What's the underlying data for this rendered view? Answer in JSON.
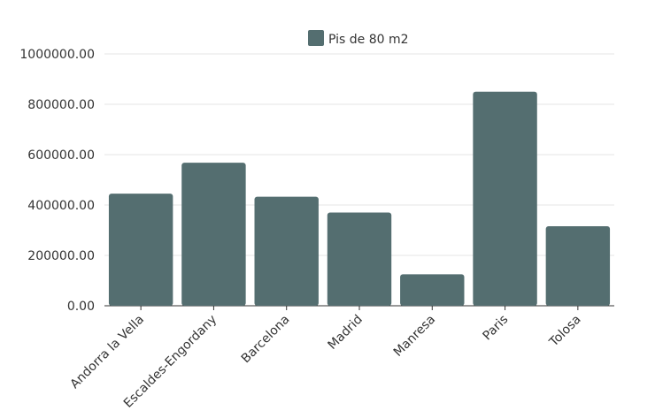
{
  "chart_data": {
    "type": "bar",
    "categories": [
      "Andorra la Vella",
      "Escaldes-Engordany",
      "Barcelona",
      "Madrid",
      "Manresa",
      "Paris",
      "Tolosa"
    ],
    "series": [
      {
        "name": "Pis de 80 m2",
        "values": [
          445000,
          568000,
          433000,
          370000,
          125000,
          850000,
          316000
        ],
        "color": "#546e70"
      }
    ],
    "yticks": [
      "0.00",
      "200000.00",
      "400000.00",
      "600000.00",
      "800000.00",
      "1000000.00"
    ],
    "ylim": [
      0,
      1000000
    ],
    "grid": true,
    "legend_position": "top-center"
  }
}
